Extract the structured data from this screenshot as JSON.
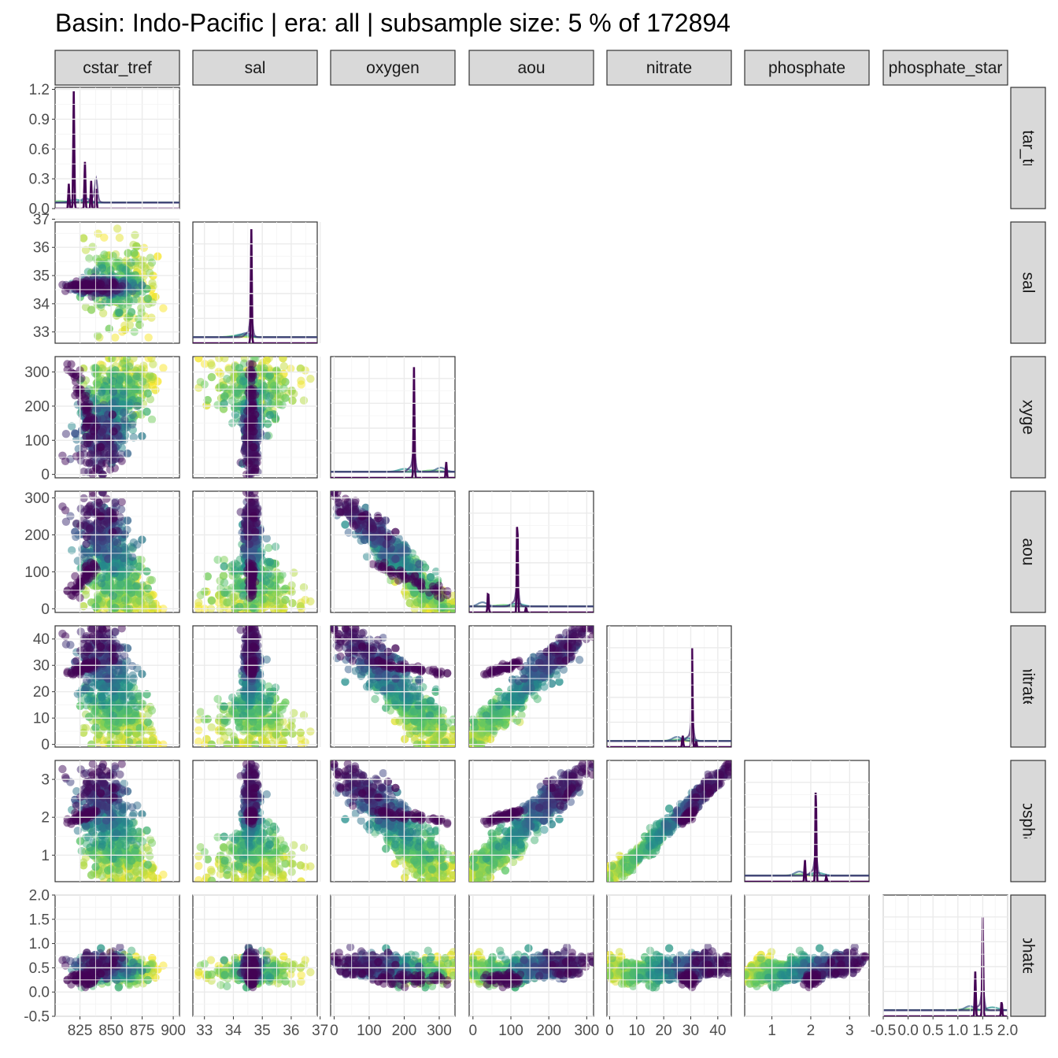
{
  "title": "Basin: Indo-Pacific | era: all | subsample size: 5 % of 172894",
  "chart_data": {
    "type": "scatter",
    "layout": "pairs-matrix (lower triangle scatter, diagonal density)",
    "variables": [
      "cstar_tref",
      "sal",
      "oxygen",
      "aou",
      "nitrate",
      "phosphate",
      "phosphate_star"
    ],
    "strip_labels": {
      "top": [
        "cstar_tref",
        "sal",
        "oxygen",
        "aou",
        "nitrate",
        "phosphate",
        "phosphate_star"
      ],
      "right": [
        "cstar_tref",
        "sal",
        "oxygen",
        "aou",
        "nitrate",
        "phosphate",
        "phosphate_star"
      ]
    },
    "axes": {
      "cstar_tref": {
        "range": [
          805,
          905
        ],
        "ticks": [
          825,
          850,
          875,
          900
        ],
        "tick_labels": [
          "825",
          "850",
          "875",
          "900"
        ]
      },
      "sal": {
        "range": [
          32.6,
          36.9
        ],
        "ticks": [
          33,
          34,
          35,
          36,
          37
        ],
        "tick_labels": [
          "33",
          "34",
          "35",
          "36",
          "37"
        ]
      },
      "oxygen": {
        "range": [
          -10,
          345
        ],
        "ticks": [
          0,
          100,
          200,
          300
        ],
        "tick_labels": [
          "0",
          "100",
          "200",
          "300"
        ]
      },
      "aou": {
        "range": [
          -10,
          318
        ],
        "ticks": [
          0,
          100,
          200,
          300
        ],
        "tick_labels": [
          "0",
          "100",
          "200",
          "300"
        ]
      },
      "nitrate": {
        "range": [
          -1,
          45
        ],
        "ticks": [
          0,
          10,
          20,
          30,
          40
        ],
        "tick_labels": [
          "0",
          "10",
          "20",
          "30",
          "40"
        ]
      },
      "phosphate": {
        "range": [
          0.3,
          3.5
        ],
        "ticks": [
          1,
          2,
          3
        ],
        "tick_labels": [
          "1",
          "2",
          "3"
        ]
      },
      "phosphate_star": {
        "range": [
          -0.5,
          2.0
        ],
        "ticks": [
          -0.5,
          0.0,
          0.5,
          1.0,
          1.5,
          2.0
        ],
        "tick_labels": [
          "-0.5",
          "0.0",
          "0.5",
          "1.0",
          "1.5",
          "2.0"
        ]
      }
    },
    "diagonal_density_axis": {
      "range": [
        0,
        1.22
      ],
      "ticks": [
        0.0,
        0.3,
        0.6,
        0.9,
        1.2
      ],
      "tick_labels": [
        "0.0",
        "0.3",
        "0.6",
        "0.9",
        "1.2"
      ]
    },
    "density_peaks": {
      "cstar_tref": [
        [
          816,
          0.25
        ],
        [
          820,
          1.18
        ],
        [
          829,
          0.47
        ],
        [
          834,
          0.28
        ],
        [
          838,
          0.2
        ]
      ],
      "sal": [
        [
          34.62,
          1.15
        ]
      ],
      "oxygen": [
        [
          228,
          1.12
        ],
        [
          320,
          0.16
        ]
      ],
      "aou": [
        [
          40,
          0.22
        ],
        [
          117,
          1.0
        ],
        [
          140,
          0.05
        ]
      ],
      "nitrate": [
        [
          27,
          0.12
        ],
        [
          30.5,
          1.0
        ],
        [
          32,
          0.06
        ]
      ],
      "phosphate": [
        [
          1.85,
          0.22
        ],
        [
          2.13,
          1.0
        ],
        [
          2.4,
          0.05
        ]
      ],
      "phosphate_star": [
        [
          1.35,
          0.45
        ],
        [
          1.5,
          1.0
        ],
        [
          1.88,
          0.16
        ]
      ]
    },
    "color_scale": {
      "name": "viridis",
      "description": "point colour encodes depth-like ordering (dark purple = deep, yellow = surface)",
      "colors": [
        "#440154",
        "#3b528b",
        "#21908c",
        "#5dc863",
        "#fde725"
      ]
    },
    "point_alpha": 0.5,
    "grid": true,
    "legend": "none"
  }
}
